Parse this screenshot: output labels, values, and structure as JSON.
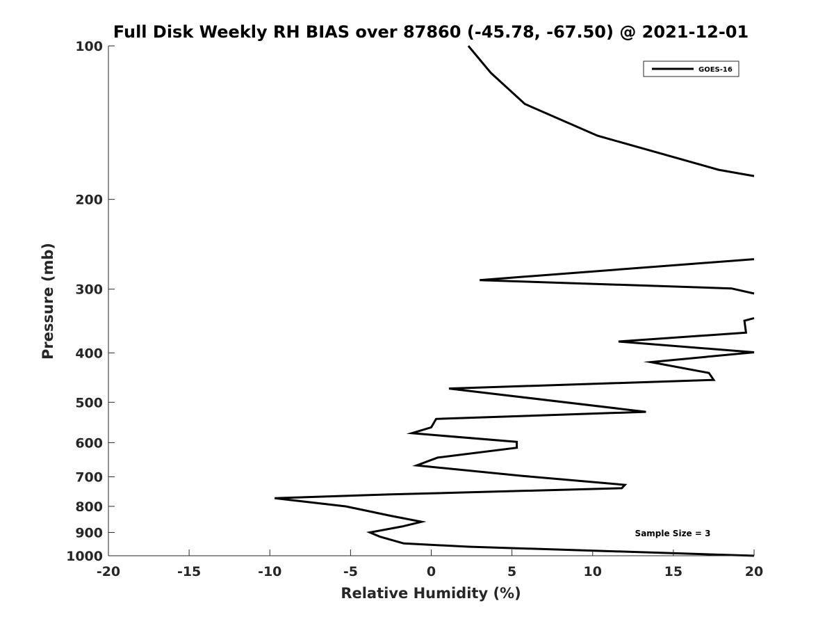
{
  "chart_data": {
    "type": "line",
    "title": "Full Disk Weekly RH BIAS over 87860 (-45.78, -67.50) @ 2021-12-01",
    "xlabel": "Relative Humidity (%)",
    "ylabel": "Pressure (mb)",
    "xlim": [
      -20,
      20
    ],
    "ylim": [
      100,
      1000
    ],
    "y_scale": "log",
    "y_reversed": true,
    "x_ticks": [
      -20,
      -15,
      -10,
      -5,
      0,
      5,
      10,
      15,
      20
    ],
    "x_tick_labels": [
      "-20",
      "-15",
      "-10",
      "-5",
      "0",
      "5",
      "10",
      "15",
      "20"
    ],
    "y_ticks": [
      100,
      200,
      300,
      400,
      500,
      600,
      700,
      800,
      900,
      1000
    ],
    "y_tick_labels": [
      "100",
      "200",
      "300",
      "400",
      "500",
      "600",
      "700",
      "800",
      "900",
      "1000"
    ],
    "grid": false,
    "legend_position": "top-right",
    "annotation": "Sample Size = 3",
    "series": [
      {
        "name": "GOES-16",
        "color": "#000000",
        "segments": [
          [
            [
              2.3,
              100
            ],
            [
              3.7,
              113
            ],
            [
              5.8,
              130
            ],
            [
              10.3,
              150
            ],
            [
              17.8,
              175
            ],
            [
              20.0,
              180
            ]
          ],
          [
            [
              20.0,
              262
            ],
            [
              3.0,
              288
            ],
            [
              18.6,
              299
            ],
            [
              20.0,
              306
            ]
          ],
          [
            [
              20.0,
              342
            ],
            [
              19.4,
              346
            ],
            [
              19.5,
              365
            ],
            [
              11.6,
              380
            ],
            [
              20.0,
              399
            ],
            [
              13.6,
              417
            ],
            [
              17.2,
              438
            ],
            [
              17.5,
              452
            ],
            [
              1.1,
              470
            ],
            [
              13.3,
              522
            ],
            [
              0.3,
              539
            ],
            [
              0.0,
              560
            ],
            [
              -1.2,
              575
            ],
            [
              5.3,
              598
            ],
            [
              5.3,
              614
            ],
            [
              0.4,
              642
            ],
            [
              -0.9,
              665
            ],
            [
              5.6,
              697
            ],
            [
              12.0,
              726
            ],
            [
              11.8,
              737
            ],
            [
              -2.5,
              758
            ],
            [
              -9.7,
              771
            ],
            [
              -5.3,
              800
            ],
            [
              -2.5,
              835
            ],
            [
              -0.6,
              858
            ],
            [
              -1.8,
              876
            ],
            [
              -3.8,
              900
            ],
            [
              -3.2,
              917
            ],
            [
              -1.7,
              946
            ],
            [
              2.3,
              960
            ],
            [
              20.0,
              1000
            ]
          ]
        ]
      }
    ]
  }
}
